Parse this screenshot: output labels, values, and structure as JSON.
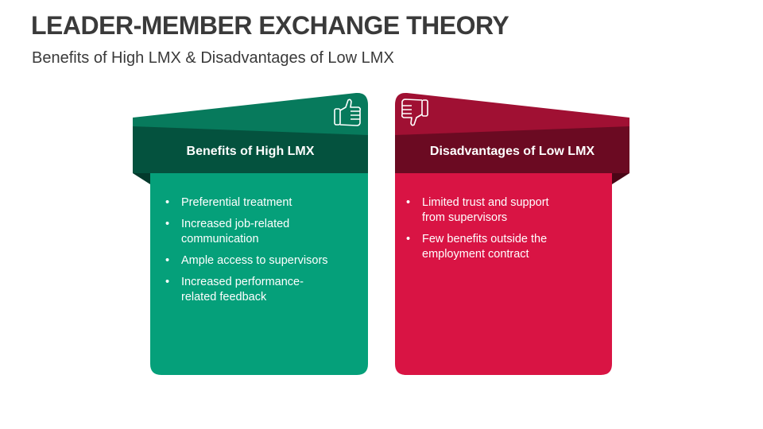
{
  "title": "LEADER-MEMBER EXCHANGE THEORY",
  "subtitle": "Benefits of High LMX & Disadvantages of Low LMX",
  "colors": {
    "green_top": "#077a5c",
    "green_banner": "#04523e",
    "green_body": "#05a07a",
    "red_top": "#a01033",
    "red_banner": "#6b0a22",
    "red_body": "#d91444"
  },
  "cards": [
    {
      "heading": "Benefits of High LMX",
      "icon": "thumbs-up-icon",
      "items": [
        "Preferential treatment",
        "Increased job-related communication",
        "Ample access to supervisors",
        "Increased performance-related feedback"
      ]
    },
    {
      "heading": "Disadvantages of Low LMX",
      "icon": "thumbs-down-icon",
      "items": [
        "Limited trust and support from supervisors",
        "Few benefits outside the employment contract"
      ]
    }
  ]
}
